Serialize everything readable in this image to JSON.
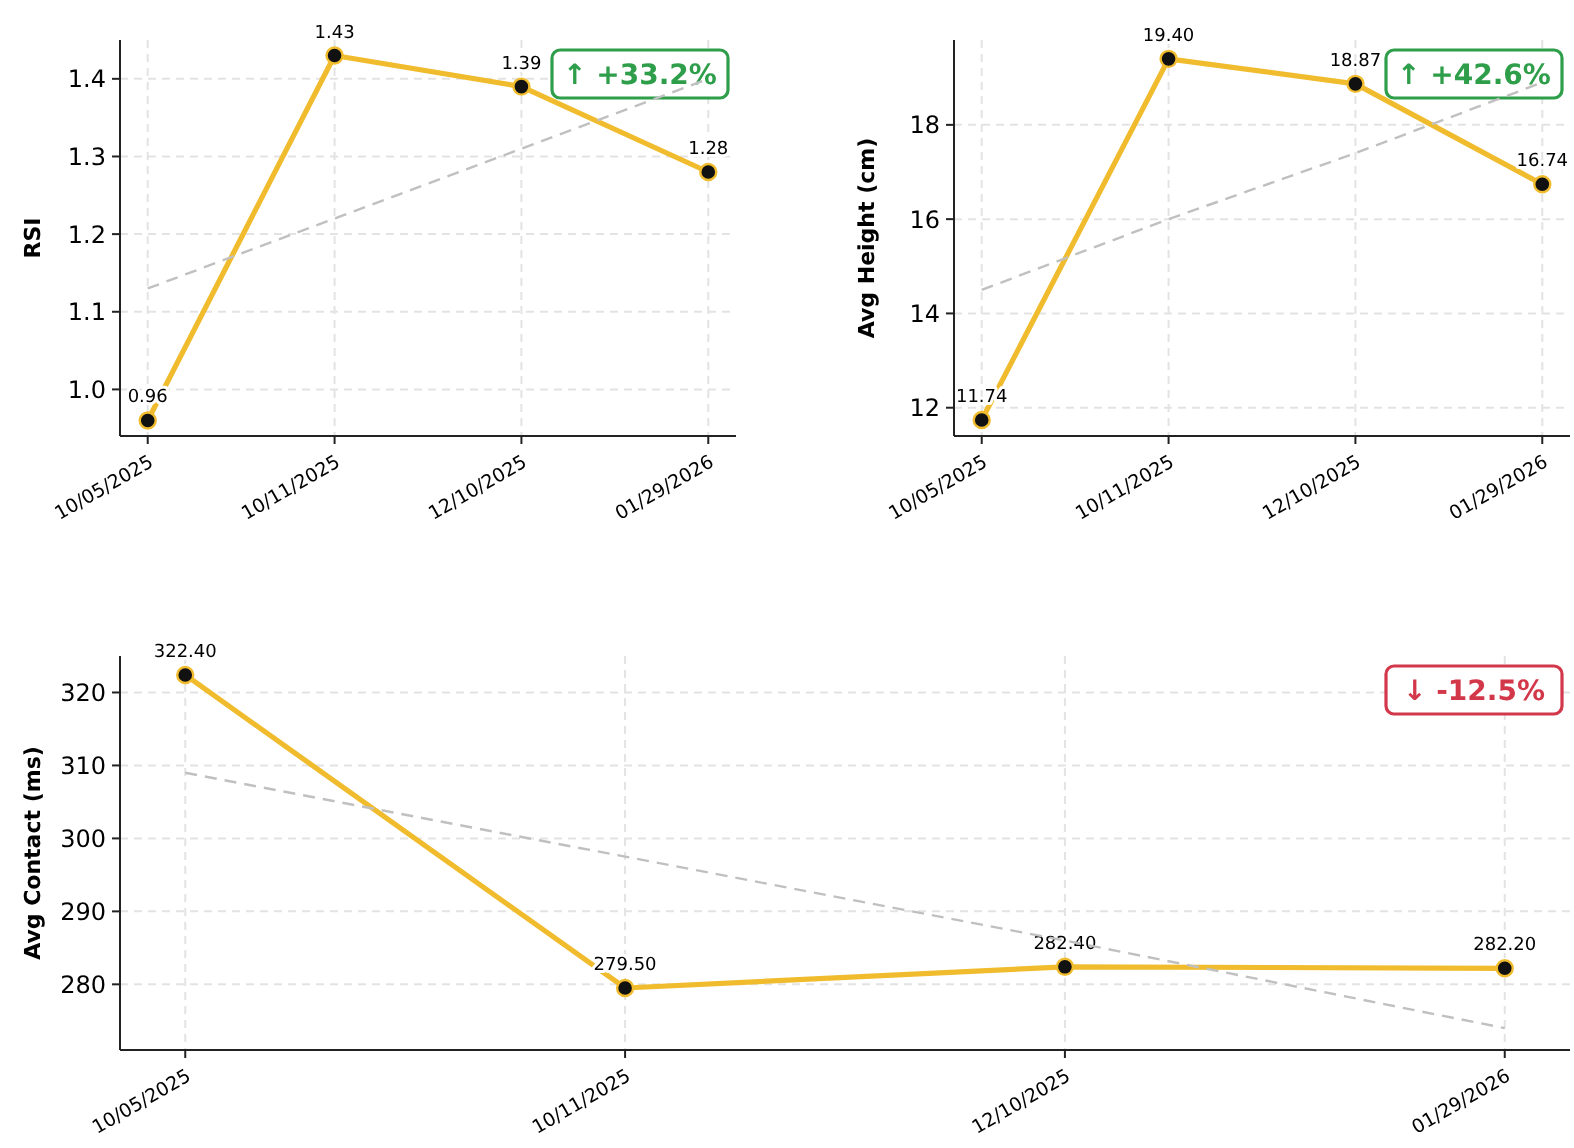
{
  "chart_data": [
    {
      "type": "line",
      "categories": [
        "10/05/2025",
        "10/11/2025",
        "12/10/2025",
        "01/29/2026"
      ],
      "ylabel": "RSI",
      "ylim": [
        0.94,
        1.45
      ],
      "yticks": [
        {
          "value": 1.0,
          "label": "1.0"
        },
        {
          "value": 1.1,
          "label": "1.1"
        },
        {
          "value": 1.2,
          "label": "1.2"
        },
        {
          "value": 1.3,
          "label": "1.3"
        },
        {
          "value": 1.4,
          "label": "1.4"
        }
      ],
      "grid": true,
      "marker": "circle",
      "annotations": [
        "↑ +33.2%"
      ],
      "series": [
        {
          "color": "#f0bc2e",
          "values": [
            0.96,
            1.43,
            1.39,
            1.28
          ],
          "value_labels": [
            "0.96",
            "1.43",
            "1.39",
            "1.28"
          ]
        },
        {
          "type": "line",
          "line_style": "dashed",
          "marker": "none",
          "color": "#c0c0c0",
          "values": [
            1.13,
            1.22,
            1.31,
            1.4
          ]
        }
      ]
    },
    {
      "type": "line",
      "categories": [
        "10/05/2025",
        "10/11/2025",
        "12/10/2025",
        "01/29/2026"
      ],
      "ylabel": "Avg Height (cm)",
      "ylim": [
        11.4,
        19.8
      ],
      "yticks": [
        12,
        14,
        16,
        18
      ],
      "grid": true,
      "marker": "circle",
      "annotations": [
        "↑ +42.6%"
      ],
      "series": [
        {
          "color": "#f0bc2e",
          "values": [
            11.74,
            19.4,
            18.87,
            16.74
          ],
          "value_labels": [
            "11.74",
            "19.40",
            "18.87",
            "16.74"
          ]
        },
        {
          "type": "line",
          "line_style": "dashed",
          "marker": "none",
          "color": "#c0c0c0",
          "values": [
            14.5,
            16.0,
            17.4,
            18.9
          ]
        }
      ]
    },
    {
      "type": "line",
      "categories": [
        "10/05/2025",
        "10/11/2025",
        "12/10/2025",
        "01/29/2026"
      ],
      "ylabel": "Avg Contact (ms)",
      "ylim": [
        271,
        325
      ],
      "yticks": [
        280,
        290,
        300,
        310,
        320
      ],
      "grid": true,
      "marker": "circle",
      "annotations": [
        "↓ -12.5%"
      ],
      "series": [
        {
          "color": "#f0bc2e",
          "values": [
            322.4,
            279.5,
            282.4,
            282.2
          ],
          "value_labels": [
            "322.40",
            "279.50",
            "282.40",
            "282.20"
          ]
        },
        {
          "type": "line",
          "line_style": "dashed",
          "marker": "none",
          "color": "#c0c0c0",
          "values": [
            309,
            297.5,
            286,
            274
          ]
        }
      ]
    }
  ]
}
